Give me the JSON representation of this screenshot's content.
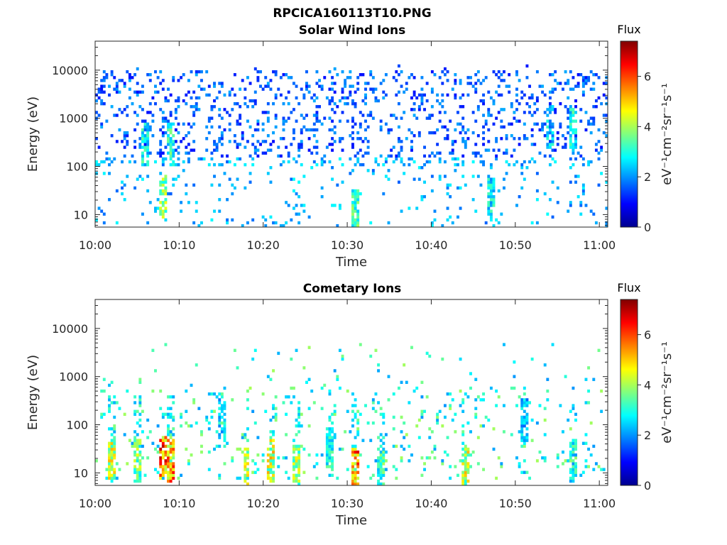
{
  "figure": {
    "title": "RPCICA160113T10.PNG"
  },
  "colormap": "jet",
  "chart_data": [
    {
      "type": "heatmap",
      "title": "Solar Wind Ions",
      "xlabel": "Time",
      "ylabel": "Energy (eV)",
      "x_ticks": [
        "10:00",
        "10:10",
        "10:20",
        "10:30",
        "10:40",
        "10:50",
        "11:00"
      ],
      "y_ticks": [
        "10",
        "100",
        "1000",
        "10000"
      ],
      "y_scale": "log",
      "ylim": [
        5.5,
        40000
      ],
      "xlim": [
        "10:00",
        "11:01"
      ],
      "colorbar": {
        "title": "Flux",
        "label": "eV⁻¹cm⁻²sr⁻¹s⁻¹",
        "ticks": [
          "0",
          "2",
          "4",
          "6"
        ],
        "range": [
          0,
          7.4
        ]
      },
      "dominant_energy_range_eV": [
        100,
        10000
      ],
      "typical_flux": [
        1.0,
        2.2
      ],
      "peaks": [
        {
          "time": "10:06",
          "energy_eV": 300,
          "flux": 3.6
        },
        {
          "time": "10:09",
          "energy_eV": 300,
          "flux": 3.8
        },
        {
          "time": "10:08",
          "energy_eV": 25,
          "flux": 4.6
        },
        {
          "time": "10:31",
          "energy_eV": 12,
          "flux": 4.2
        },
        {
          "time": "10:47",
          "energy_eV": 20,
          "flux": 3.4
        },
        {
          "time": "10:54",
          "energy_eV": 650,
          "flux": 3.2
        },
        {
          "time": "10:57",
          "energy_eV": 600,
          "flux": 3.6
        }
      ]
    },
    {
      "type": "heatmap",
      "title": "Cometary Ions",
      "xlabel": "Time",
      "ylabel": "Energy (eV)",
      "x_ticks": [
        "10:00",
        "10:10",
        "10:20",
        "10:30",
        "10:40",
        "10:50",
        "11:00"
      ],
      "y_ticks": [
        "10",
        "100",
        "1000",
        "10000"
      ],
      "y_scale": "log",
      "ylim": [
        5.5,
        40000
      ],
      "xlim": [
        "10:00",
        "11:01"
      ],
      "colorbar": {
        "title": "Flux",
        "label": "eV⁻¹cm⁻²sr⁻¹s⁻¹",
        "ticks": [
          "0",
          "2",
          "4",
          "6"
        ],
        "range": [
          0,
          7.4
        ]
      },
      "dominant_energy_range_eV": [
        7,
        600
      ],
      "typical_flux": [
        2.0,
        4.0
      ],
      "bursts": [
        {
          "time": "10:02",
          "energy_eV": 20,
          "flux": 5.2
        },
        {
          "time": "10:05",
          "energy_eV": 18,
          "flux": 4.6
        },
        {
          "time": "10:08",
          "energy_eV": 20,
          "flux": 7.0
        },
        {
          "time": "10:09",
          "energy_eV": 18,
          "flux": 6.6
        },
        {
          "time": "10:15",
          "energy_eV": 120,
          "flux": 3.2
        },
        {
          "time": "10:18",
          "energy_eV": 12,
          "flux": 5.0
        },
        {
          "time": "10:21",
          "energy_eV": 18,
          "flux": 5.4
        },
        {
          "time": "10:24",
          "energy_eV": 14,
          "flux": 5.0
        },
        {
          "time": "10:28",
          "energy_eV": 30,
          "flux": 3.6
        },
        {
          "time": "10:31",
          "energy_eV": 12,
          "flux": 6.8
        },
        {
          "time": "10:34",
          "energy_eV": 10,
          "flux": 4.0
        },
        {
          "time": "10:44",
          "energy_eV": 14,
          "flux": 5.2
        },
        {
          "time": "10:51",
          "energy_eV": 120,
          "flux": 3.0
        },
        {
          "time": "10:57",
          "energy_eV": 18,
          "flux": 3.6
        }
      ]
    }
  ]
}
